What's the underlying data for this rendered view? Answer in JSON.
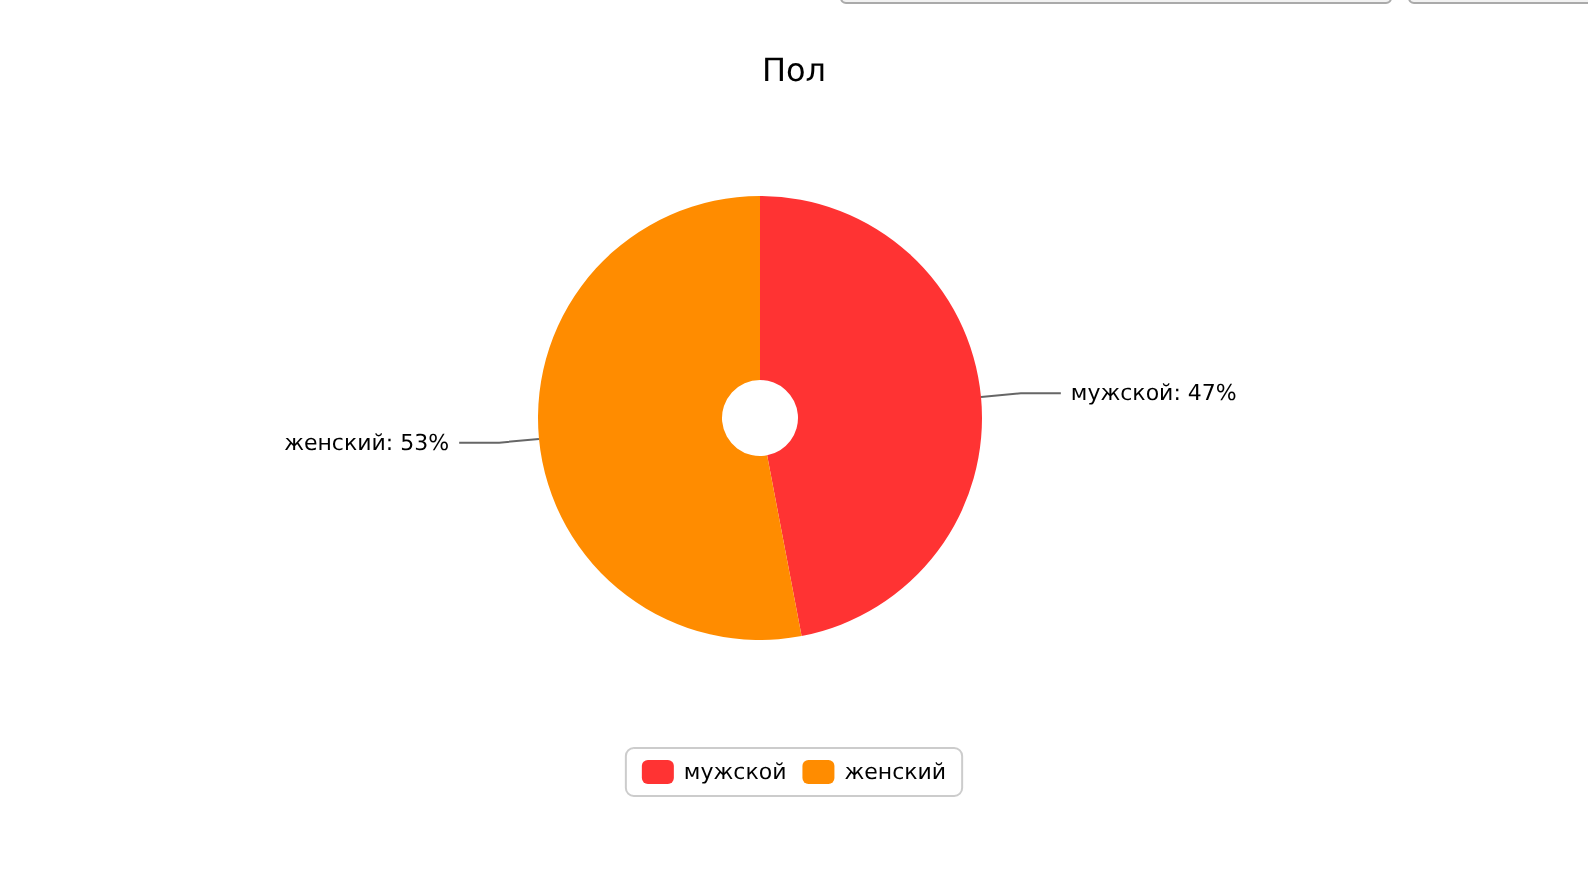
{
  "chart_data": {
    "type": "donut",
    "title": "Пол",
    "categories": [
      "мужской",
      "женский"
    ],
    "values": [
      47,
      53
    ],
    "value_labels": [
      "мужской: 47%",
      "женский: 53%"
    ],
    "colors": [
      "#ff3333",
      "#ff8c00"
    ],
    "legend": "bottom"
  }
}
